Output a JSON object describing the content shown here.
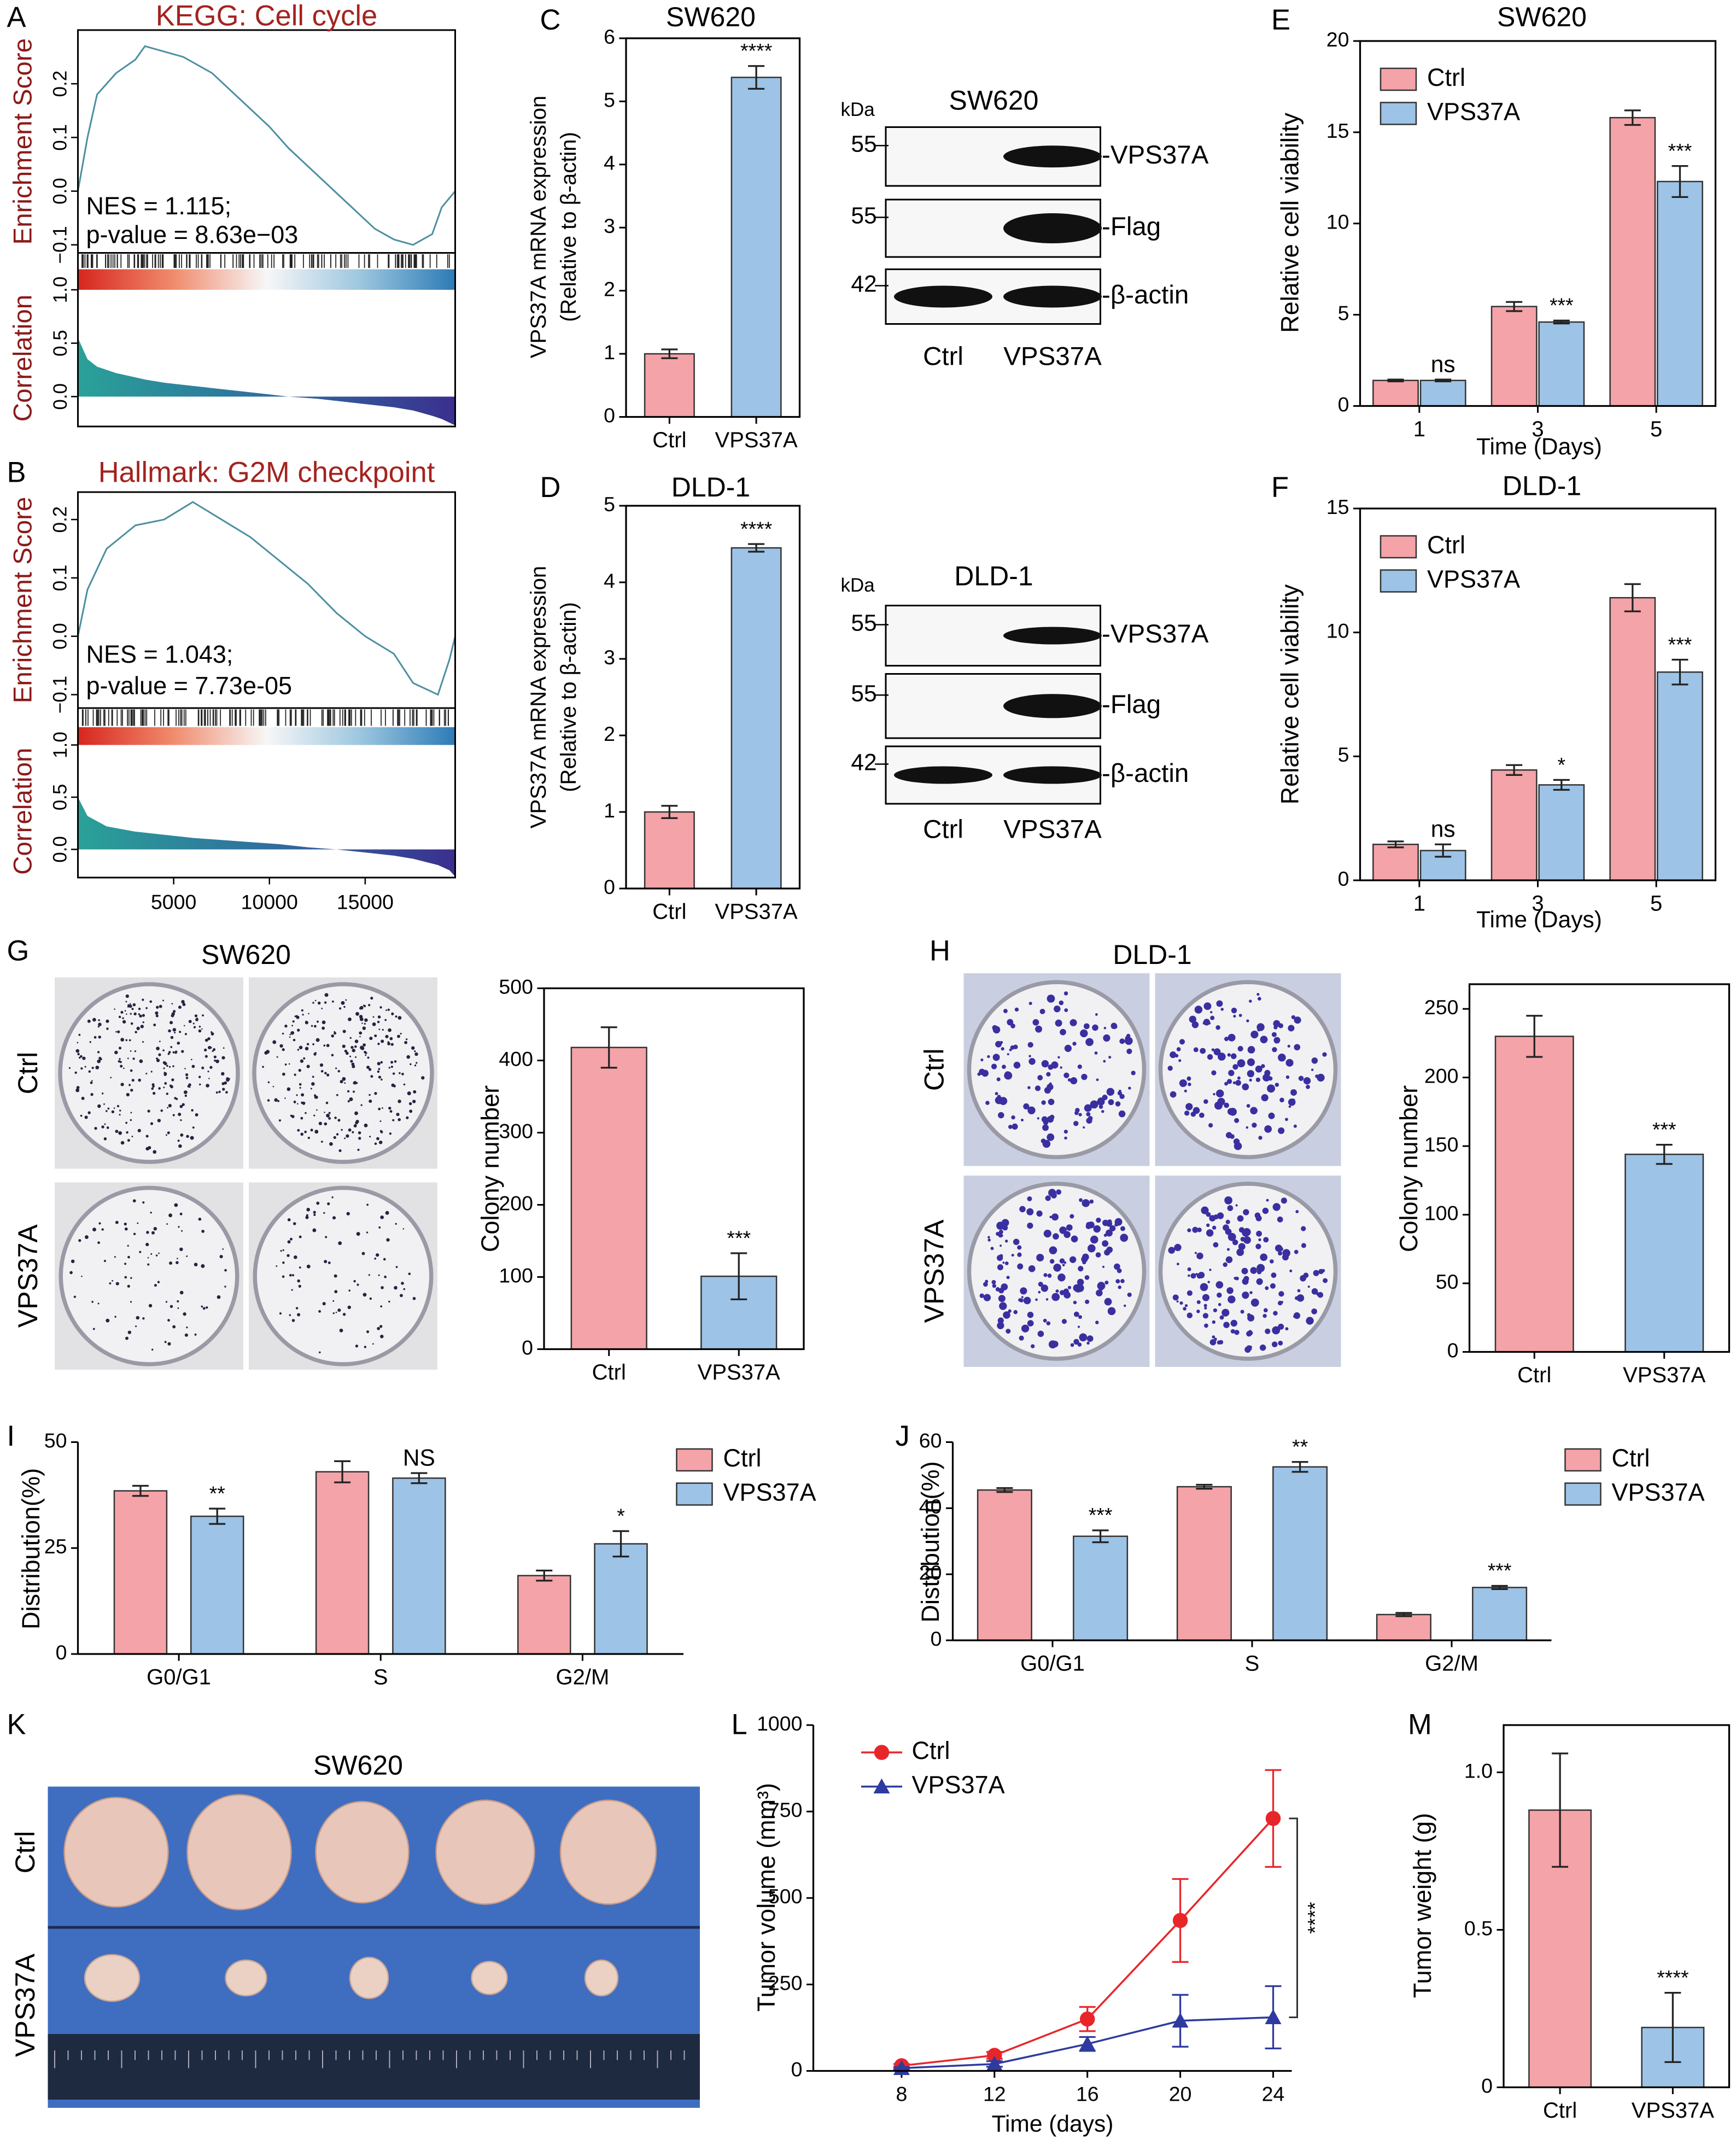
{
  "panel_labels": [
    "A",
    "B",
    "C",
    "D",
    "E",
    "F",
    "G",
    "H",
    "I",
    "J",
    "K",
    "L",
    "M"
  ],
  "chart_data": [
    {
      "type": "gsea",
      "title": "KEGG: Cell cycle",
      "ylabel": "Enrichment Score",
      "y2label": "Correlation",
      "annotations": [
        "NES = 1.115;",
        "p-value = 8.63e−03"
      ],
      "x": [
        0,
        500,
        1000,
        2000,
        3000,
        3500,
        4500,
        5500,
        7000,
        8500,
        10000,
        11000,
        12500,
        14000,
        15500,
        16500,
        17500,
        18500,
        19000,
        19700
      ],
      "enrichment_score": [
        0,
        0.1,
        0.18,
        0.22,
        0.245,
        0.27,
        0.26,
        0.25,
        0.22,
        0.17,
        0.12,
        0.08,
        0.03,
        -0.02,
        -0.07,
        -0.09,
        -0.1,
        -0.08,
        -0.03,
        0.0
      ],
      "correlation": [
        0.55,
        0.35,
        0.28,
        0.22,
        0.18,
        0.16,
        0.13,
        0.11,
        0.08,
        0.05,
        0.02,
        0.0,
        -0.02,
        -0.05,
        -0.08,
        -0.1,
        -0.13,
        -0.18,
        -0.21,
        -0.27
      ],
      "xlim": [
        0,
        19700
      ],
      "ylim": [
        -0.115,
        0.3
      ],
      "yticks": [
        0.2,
        0.1,
        {
          "value": 0,
          "label": "0.0"
        },
        {
          "value": -0.1,
          "label": "−0.1"
        }
      ],
      "y2lim": [
        -0.28,
        1.0
      ],
      "y2ticks": [
        {
          "value": 1,
          "label": "1.0"
        },
        0.5,
        {
          "value": 0,
          "label": "0.0"
        }
      ]
    },
    {
      "type": "gsea",
      "title": "Hallmark: G2M checkpoint",
      "ylabel": "Enrichment Score",
      "y2label": "Correlation",
      "annotations": [
        "NES = 1.043;",
        "p-value = 7.73e-05"
      ],
      "x": [
        0,
        500,
        1500,
        3000,
        4500,
        5500,
        6000,
        7500,
        9000,
        10500,
        12000,
        13500,
        15000,
        16500,
        17500,
        18800,
        19400,
        19700
      ],
      "enrichment_score": [
        0,
        0.08,
        0.15,
        0.19,
        0.2,
        0.22,
        0.23,
        0.2,
        0.17,
        0.13,
        0.09,
        0.04,
        0.0,
        -0.03,
        -0.08,
        -0.1,
        -0.04,
        0.0
      ],
      "correlation": [
        0.5,
        0.32,
        0.22,
        0.17,
        0.14,
        0.12,
        0.11,
        0.09,
        0.07,
        0.05,
        0.02,
        0.0,
        -0.03,
        -0.06,
        -0.09,
        -0.15,
        -0.2,
        -0.26
      ],
      "xlim": [
        0,
        19700
      ],
      "xticks": [
        5000,
        10000,
        15000
      ],
      "ylim": [
        -0.123,
        0.247
      ],
      "yticks": [
        0.2,
        0.1,
        {
          "value": 0,
          "label": "0.0"
        },
        {
          "value": -0.1,
          "label": "−0.1"
        }
      ],
      "y2lim": [
        -0.27,
        1.0
      ],
      "y2ticks": [
        {
          "value": 1,
          "label": "1.0"
        },
        0.5,
        {
          "value": 0,
          "label": "0.0"
        }
      ]
    },
    {
      "type": "bar",
      "title": "SW620",
      "ylabel": [
        "VPS37A mRNA expression",
        "(Relative to β-actin)"
      ],
      "categories": [
        "Ctrl",
        "VPS37A"
      ],
      "values": [
        1.0,
        5.38
      ],
      "errors": [
        0.07,
        0.18
      ],
      "colors": [
        "#f4a3a8",
        "#9dc3e6"
      ],
      "annotations": [
        null,
        "****"
      ],
      "ylim": [
        0,
        6
      ],
      "yticks": [
        0,
        1,
        2,
        3,
        4,
        5,
        6
      ]
    },
    {
      "type": "bar",
      "title": "DLD-1",
      "ylabel": [
        "VPS37A mRNA expression",
        "(Relative to β-actin)"
      ],
      "categories": [
        "Ctrl",
        "VPS37A"
      ],
      "values": [
        1.0,
        4.45
      ],
      "errors": [
        0.08,
        0.05
      ],
      "colors": [
        "#f4a3a8",
        "#9dc3e6"
      ],
      "annotations": [
        null,
        "****"
      ],
      "ylim": [
        0,
        5
      ],
      "yticks": [
        0,
        1,
        2,
        3,
        4,
        5
      ]
    },
    {
      "type": "bar",
      "title": "SW620",
      "ylabel": "Relative cell viability",
      "xlabel": "Time (Days)",
      "categories": [
        "1",
        "3",
        "5"
      ],
      "series": [
        {
          "name": "Ctrl",
          "color": "#f4a3a8",
          "values": [
            1.4,
            5.45,
            15.8
          ],
          "errors": [
            0.05,
            0.25,
            0.4
          ]
        },
        {
          "name": "VPS37A",
          "color": "#9dc3e6",
          "values": [
            1.4,
            4.6,
            12.3
          ],
          "errors": [
            0.05,
            0.08,
            0.85
          ]
        }
      ],
      "annotations": [
        "ns",
        "***",
        "***"
      ],
      "ylim": [
        0,
        20
      ],
      "yticks": [
        0,
        5,
        10,
        15,
        20
      ],
      "legend": "upper left"
    },
    {
      "type": "bar",
      "title": "DLD-1",
      "ylabel": "Relative cell viability",
      "xlabel": "Time (Days)",
      "categories": [
        "1",
        "3",
        "5"
      ],
      "series": [
        {
          "name": "Ctrl",
          "color": "#f4a3a8",
          "values": [
            1.45,
            4.45,
            11.4
          ],
          "errors": [
            0.12,
            0.2,
            0.55
          ]
        },
        {
          "name": "VPS37A",
          "color": "#9dc3e6",
          "values": [
            1.2,
            3.85,
            8.4
          ],
          "errors": [
            0.25,
            0.2,
            0.5
          ]
        }
      ],
      "annotations": [
        "ns",
        "*",
        "***"
      ],
      "ylim": [
        0,
        15
      ],
      "yticks": [
        0,
        5,
        10,
        15
      ],
      "legend": "upper left"
    },
    {
      "type": "bar",
      "ylabel": "Colony number",
      "categories": [
        "Ctrl",
        "VPS37A"
      ],
      "values": [
        418,
        101
      ],
      "errors": [
        28,
        32
      ],
      "colors": [
        "#f4a3a8",
        "#9dc3e6"
      ],
      "annotations": [
        null,
        "***"
      ],
      "ylim": [
        0,
        500
      ],
      "yticks": [
        0,
        100,
        200,
        300,
        400,
        500
      ]
    },
    {
      "type": "bar",
      "ylabel": "Colony number",
      "categories": [
        "Ctrl",
        "VPS37A"
      ],
      "values": [
        230,
        144
      ],
      "errors": [
        15,
        7
      ],
      "colors": [
        "#f4a3a8",
        "#9dc3e6"
      ],
      "annotations": [
        null,
        "***"
      ],
      "ylim": [
        0,
        268
      ],
      "yticks": [
        0,
        50,
        100,
        150,
        200,
        250
      ]
    },
    {
      "type": "bar",
      "ylabel": "Distribution(%)",
      "categories": [
        "G0/G1",
        "S",
        "G2/M"
      ],
      "series": [
        {
          "name": "Ctrl",
          "color": "#f4a3a8",
          "values": [
            38.5,
            43,
            18.5
          ],
          "errors": [
            1.2,
            2.5,
            1.2
          ]
        },
        {
          "name": "VPS37A",
          "color": "#9dc3e6",
          "values": [
            32.5,
            41.5,
            26
          ],
          "errors": [
            1.8,
            1.2,
            3
          ]
        }
      ],
      "annotations": [
        "**",
        "NS",
        "*"
      ],
      "ylim": [
        0,
        50
      ],
      "yticks": [
        0,
        25,
        50
      ],
      "legend": "right"
    },
    {
      "type": "bar",
      "ylabel": "Distribution(%)",
      "categories": [
        "G0/G1",
        "S",
        "G2/M"
      ],
      "series": [
        {
          "name": "Ctrl",
          "color": "#f4a3a8",
          "values": [
            45.5,
            46.5,
            7.8
          ],
          "errors": [
            0.6,
            0.6,
            0.5
          ]
        },
        {
          "name": "VPS37A",
          "color": "#9dc3e6",
          "values": [
            31.5,
            52.5,
            16
          ],
          "errors": [
            1.8,
            1.5,
            0.5
          ]
        }
      ],
      "annotations": [
        "***",
        "**",
        "***"
      ],
      "ylim": [
        0,
        60
      ],
      "yticks": [
        0,
        20,
        40,
        60
      ],
      "legend": "right"
    },
    {
      "type": "line",
      "ylabel": "Tumor volume (mm³)",
      "xlabel": "Time (days)",
      "annotation": "****",
      "x": [
        8,
        12,
        16,
        20,
        24
      ],
      "series": [
        {
          "name": "Ctrl",
          "color": "#e8262a",
          "marker": "circle",
          "values": [
            15,
            45,
            150,
            435,
            730
          ],
          "errors": [
            5,
            10,
            35,
            120,
            140
          ]
        },
        {
          "name": "VPS37A",
          "color": "#2e3a9f",
          "marker": "triangle",
          "values": [
            8,
            20,
            78,
            145,
            155
          ],
          "errors": [
            3,
            8,
            20,
            75,
            90
          ]
        }
      ],
      "xlim": [
        4.2,
        24.8
      ],
      "xticks": [
        8,
        12,
        16,
        20,
        24
      ],
      "ylim": [
        0,
        1000
      ],
      "yticks": [
        0,
        250,
        500,
        750,
        1000
      ],
      "legend": "upper left"
    },
    {
      "type": "bar",
      "ylabel": "Tumor weight (g)",
      "categories": [
        "Ctrl",
        "VPS37A"
      ],
      "values": [
        0.88,
        0.19
      ],
      "errors": [
        0.18,
        0.11
      ],
      "colors": [
        "#f4a3a8",
        "#9dc3e6"
      ],
      "annotations": [
        null,
        "****"
      ],
      "ylim": [
        0,
        1.15
      ],
      "yticks": [
        0,
        0.5,
        {
          "value": 1,
          "label": "1.0"
        }
      ]
    }
  ],
  "blots": [
    {
      "title": "SW620",
      "unit": "kDa",
      "markers": [
        "55",
        "55",
        "42"
      ],
      "bands": [
        "-VPS37A",
        "-Flag",
        "-β-actin"
      ],
      "lanes": [
        "Ctrl",
        "VPS37A"
      ]
    },
    {
      "title": "DLD-1",
      "unit": "kDa",
      "markers": [
        "55",
        "55",
        "42"
      ],
      "bands": [
        "-VPS37A",
        "-Flag",
        "-β-actin"
      ],
      "lanes": [
        "Ctrl",
        "VPS37A"
      ]
    }
  ],
  "colony_photos": [
    {
      "title": "SW620",
      "rows": [
        "Ctrl",
        "VPS37A"
      ]
    },
    {
      "title": "DLD-1",
      "rows": [
        "Ctrl",
        "VPS37A"
      ]
    }
  ],
  "tumor_photo": {
    "title": "SW620",
    "rows": [
      "Ctrl",
      "VPS37A"
    ]
  }
}
